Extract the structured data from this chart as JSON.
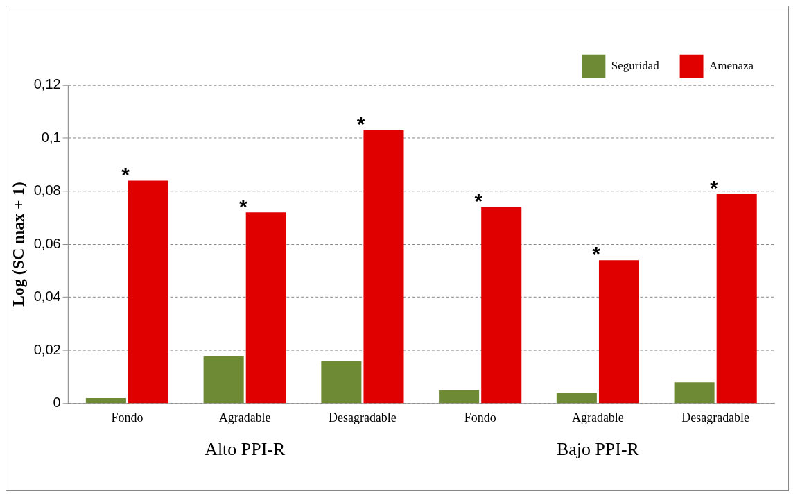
{
  "chart_data": {
    "type": "bar",
    "ylabel": "Log (SC max + 1)",
    "categories": [
      "Fondo",
      "Agradable",
      "Desagradable",
      "Fondo",
      "Agradable",
      "Desagradable"
    ],
    "series": [
      {
        "name": "Seguridad",
        "color": "#6f8a35",
        "values": [
          0.002,
          0.018,
          0.016,
          0.005,
          0.004,
          0.008
        ]
      },
      {
        "name": "Amenaza",
        "color": "#e00000",
        "values": [
          0.084,
          0.072,
          0.103,
          0.074,
          0.054,
          0.079
        ],
        "value_labels": [
          "*",
          "*",
          "*",
          "*",
          "*",
          "*"
        ]
      }
    ],
    "ylim": [
      0,
      0.12
    ],
    "yticks": [
      0,
      {
        "value": 0.02,
        "label": "0,02"
      },
      {
        "value": 0.04,
        "label": "0,04"
      },
      {
        "value": 0.06,
        "label": "0,06"
      },
      {
        "value": 0.08,
        "label": "0,08"
      },
      {
        "value": 0.1,
        "label": "0,1"
      },
      {
        "value": 0.12,
        "label": "0,12"
      }
    ],
    "grid": "y",
    "legend": "top right",
    "annotations": [
      "Alto PPI-R",
      "Bajo PPI-R"
    ]
  }
}
